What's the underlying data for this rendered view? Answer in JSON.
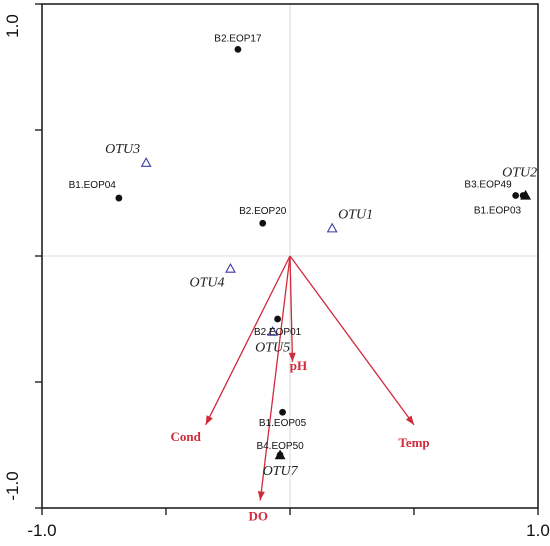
{
  "chart_data": {
    "type": "scatter",
    "title": "",
    "xlabel": "",
    "ylabel": "",
    "xlim": [
      -1.0,
      1.0
    ],
    "ylim": [
      -1.0,
      1.0
    ],
    "grid": false,
    "x_tick_labels": [
      {
        "value": -1.0,
        "label": "-1.0"
      },
      {
        "value": 1.0,
        "label": "1.0"
      }
    ],
    "y_tick_labels": [
      {
        "value": 1.0,
        "label": "1.0"
      },
      {
        "value": -1.0,
        "label": "-1.0"
      }
    ],
    "sites": [
      {
        "name": "B2.EOP17",
        "x": -0.21,
        "y": 0.82
      },
      {
        "name": "B1.EOP04",
        "x": -0.69,
        "y": 0.23
      },
      {
        "name": "B2.EOP20",
        "x": -0.11,
        "y": 0.13
      },
      {
        "name": "B3.EOP49",
        "x": 0.91,
        "y": 0.24
      },
      {
        "name": "B1.EOP03",
        "x": 0.94,
        "y": 0.24
      },
      {
        "name": "B2.EOP01",
        "x": -0.05,
        "y": -0.25
      },
      {
        "name": "B1.EOP05",
        "x": -0.03,
        "y": -0.62
      },
      {
        "name": "B4.EOP50",
        "x": -0.04,
        "y": -0.79
      }
    ],
    "species": [
      {
        "name": "OTU1",
        "x": 0.17,
        "y": 0.11,
        "filled": false
      },
      {
        "name": "OTU2",
        "x": 0.95,
        "y": 0.24,
        "filled": true
      },
      {
        "name": "OTU3",
        "x": -0.58,
        "y": 0.37,
        "filled": false
      },
      {
        "name": "OTU4",
        "x": -0.24,
        "y": -0.05,
        "filled": false
      },
      {
        "name": "OTU5",
        "x": -0.07,
        "y": -0.3,
        "filled": false
      },
      {
        "name": "OTU7",
        "x": -0.04,
        "y": -0.79,
        "filled": true
      }
    ],
    "env_vectors": [
      {
        "name": "pH",
        "x": 0.01,
        "y": -0.42
      },
      {
        "name": "Cond",
        "x": -0.34,
        "y": -0.67
      },
      {
        "name": "DO",
        "x": -0.12,
        "y": -0.97
      },
      {
        "name": "Temp",
        "x": 0.5,
        "y": -0.67
      }
    ],
    "colors": {
      "sites": "#111111",
      "species_open": "#3a3aa0",
      "species_filled": "#111111",
      "env_vectors": "#d12a3a",
      "axes": "#222222",
      "zero_lines": "#d0d0d0"
    }
  }
}
